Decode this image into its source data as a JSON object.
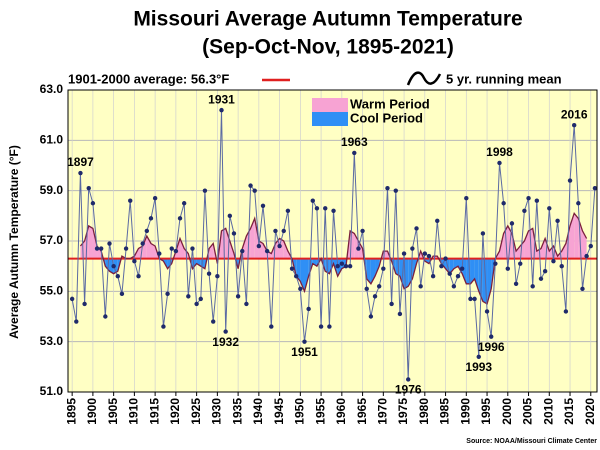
{
  "chart_data": {
    "type": "line",
    "title": "Missouri Average Autumn Temperature",
    "subtitle": "(Sep-Oct-Nov, 1895-2021)",
    "y_label": "Average Autumn Temperature (°F)",
    "source": "Source: NOAA/Missouri Climate Center",
    "average": 56.3,
    "average_label": "1901-2000 average: 56.3°F",
    "average_color": "#e02020",
    "warm_label": "Warm Period",
    "warm_color": "#f7a3d3",
    "cool_label": "Cool Period",
    "cool_color": "#2f8ff5",
    "xlim": [
      1894,
      2021.5
    ],
    "ylim": [
      51,
      63
    ],
    "xticks": [
      1895,
      1900,
      1905,
      1910,
      1915,
      1920,
      1925,
      1930,
      1935,
      1940,
      1945,
      1950,
      1955,
      1960,
      1965,
      1970,
      1975,
      1980,
      1985,
      1990,
      1995,
      2000,
      2005,
      2010,
      2015,
      2020
    ],
    "yticks": [
      {
        "value": 51,
        "label": "51.0"
      },
      {
        "value": 53,
        "label": "53.0"
      },
      {
        "value": 55,
        "label": "55.0"
      },
      {
        "value": 57,
        "label": "57.0"
      },
      {
        "value": 59,
        "label": "59.0"
      },
      {
        "value": 61,
        "label": "61.0"
      },
      {
        "value": 63,
        "label": "63.0"
      }
    ],
    "grid": true,
    "x": [
      1895,
      1896,
      1897,
      1898,
      1899,
      1900,
      1901,
      1902,
      1903,
      1904,
      1905,
      1906,
      1907,
      1908,
      1909,
      1910,
      1911,
      1912,
      1913,
      1914,
      1915,
      1916,
      1917,
      1918,
      1919,
      1920,
      1921,
      1922,
      1923,
      1924,
      1925,
      1926,
      1927,
      1928,
      1929,
      1930,
      1931,
      1932,
      1933,
      1934,
      1935,
      1936,
      1937,
      1938,
      1939,
      1940,
      1941,
      1942,
      1943,
      1944,
      1945,
      1946,
      1947,
      1948,
      1949,
      1950,
      1951,
      1952,
      1953,
      1954,
      1955,
      1956,
      1957,
      1958,
      1959,
      1960,
      1961,
      1962,
      1963,
      1964,
      1965,
      1966,
      1967,
      1968,
      1969,
      1970,
      1971,
      1972,
      1973,
      1974,
      1975,
      1976,
      1977,
      1978,
      1979,
      1980,
      1981,
      1982,
      1983,
      1984,
      1985,
      1986,
      1987,
      1988,
      1989,
      1990,
      1991,
      1992,
      1993,
      1994,
      1995,
      1996,
      1997,
      1998,
      1999,
      2000,
      2001,
      2002,
      2003,
      2004,
      2005,
      2006,
      2007,
      2008,
      2009,
      2010,
      2011,
      2012,
      2013,
      2014,
      2015,
      2016,
      2017,
      2018,
      2019,
      2020,
      2021
    ],
    "series": [
      {
        "color": "#5b6aa3",
        "marker_color": "#1f2a6b",
        "values": [
          54.7,
          53.8,
          59.7,
          54.5,
          59.1,
          58.5,
          56.7,
          56.7,
          54.0,
          56.9,
          56.0,
          55.6,
          54.9,
          56.7,
          58.6,
          56.2,
          55.6,
          56.9,
          57.4,
          57.9,
          58.7,
          56.5,
          53.6,
          54.9,
          56.7,
          56.6,
          57.9,
          58.5,
          54.8,
          56.7,
          54.5,
          54.7,
          59.0,
          55.7,
          53.8,
          55.6,
          62.2,
          53.4,
          58.0,
          57.3,
          54.8,
          56.6,
          54.5,
          59.2,
          59.0,
          56.8,
          58.4,
          56.6,
          53.6,
          57.4,
          56.8,
          57.4,
          58.2,
          55.9,
          55.6,
          55.1,
          53.0,
          54.3,
          58.6,
          58.3,
          53.6,
          58.3,
          53.6,
          58.2,
          56.0,
          56.1,
          56.0,
          56.0,
          60.5,
          56.7,
          57.4,
          55.1,
          54.0,
          54.8,
          55.2,
          55.9,
          59.1,
          54.5,
          59.0,
          54.1,
          56.5,
          51.5,
          56.7,
          57.5,
          55.2,
          56.5,
          56.4,
          55.6,
          57.8,
          56.0,
          56.3,
          55.7,
          55.2,
          55.6,
          55.9,
          58.7,
          54.7,
          54.7,
          52.4,
          57.3,
          54.2,
          53.2,
          56.1,
          60.1,
          58.5,
          55.9,
          57.7,
          55.3,
          56.1,
          58.2,
          58.7,
          55.2,
          58.6,
          55.5,
          55.8,
          58.3,
          56.2,
          57.8,
          56.0,
          54.2,
          59.4,
          61.6,
          58.5,
          55.1,
          56.4,
          56.8,
          59.1
        ]
      },
      {
        "name": "5 yr. running mean",
        "color": "#7a1f3d",
        "values": [
          null,
          null,
          56.8,
          57.0,
          57.6,
          57.5,
          56.8,
          56.6,
          56.0,
          55.8,
          55.7,
          55.8,
          56.4,
          56.3,
          56.3,
          56.4,
          56.7,
          56.8,
          57.2,
          56.9,
          56.8,
          56.3,
          56.2,
          55.9,
          56.1,
          56.6,
          57.1,
          56.7,
          56.5,
          55.9,
          56.1,
          56.0,
          55.9,
          56.7,
          56.9,
          56.1,
          57.4,
          57.5,
          57.0,
          56.5,
          55.9,
          56.7,
          57.2,
          57.5,
          57.9,
          57.0,
          56.9,
          56.6,
          56.5,
          56.9,
          57.1,
          57.0,
          56.6,
          56.3,
          55.6,
          55.4,
          55.0,
          55.6,
          56.1,
          56.0,
          56.3,
          55.8,
          55.7,
          56.1,
          55.6,
          55.9,
          56.0,
          57.4,
          57.3,
          57.0,
          56.7,
          55.5,
          55.3,
          55.6,
          56.0,
          56.6,
          56.6,
          56.2,
          55.7,
          55.6,
          55.1,
          55.2,
          55.5,
          56.1,
          56.6,
          56.2,
          56.1,
          56.4,
          56.4,
          56.1,
          55.9,
          55.7,
          55.9,
          56.0,
          55.7,
          55.3,
          55.3,
          55.5,
          55.0,
          54.6,
          54.5,
          55.1,
          56.3,
          56.6,
          57.3,
          57.6,
          57.3,
          56.6,
          56.8,
          57.0,
          57.4,
          57.5,
          56.6,
          56.7,
          57.1,
          56.6,
          56.8,
          56.4,
          56.6,
          56.9,
          57.6,
          58.1,
          57.9,
          57.4,
          57.1,
          null,
          null
        ]
      }
    ],
    "annotations": [
      {
        "text": "1897",
        "x": 1897,
        "y": 59.7
      },
      {
        "text": "1931",
        "x": 1931,
        "y": 62.2
      },
      {
        "text": "1932",
        "x": 1932,
        "y": 53.4
      },
      {
        "text": "1951",
        "x": 1951,
        "y": 53.0
      },
      {
        "text": "1963",
        "x": 1963,
        "y": 60.5
      },
      {
        "text": "1976",
        "x": 1976,
        "y": 51.5
      },
      {
        "text": "1993",
        "x": 1993,
        "y": 52.4
      },
      {
        "text": "1996",
        "x": 1996,
        "y": 53.2
      },
      {
        "text": "1998",
        "x": 1998,
        "y": 60.1
      },
      {
        "text": "2016",
        "x": 2016,
        "y": 61.6
      }
    ]
  }
}
